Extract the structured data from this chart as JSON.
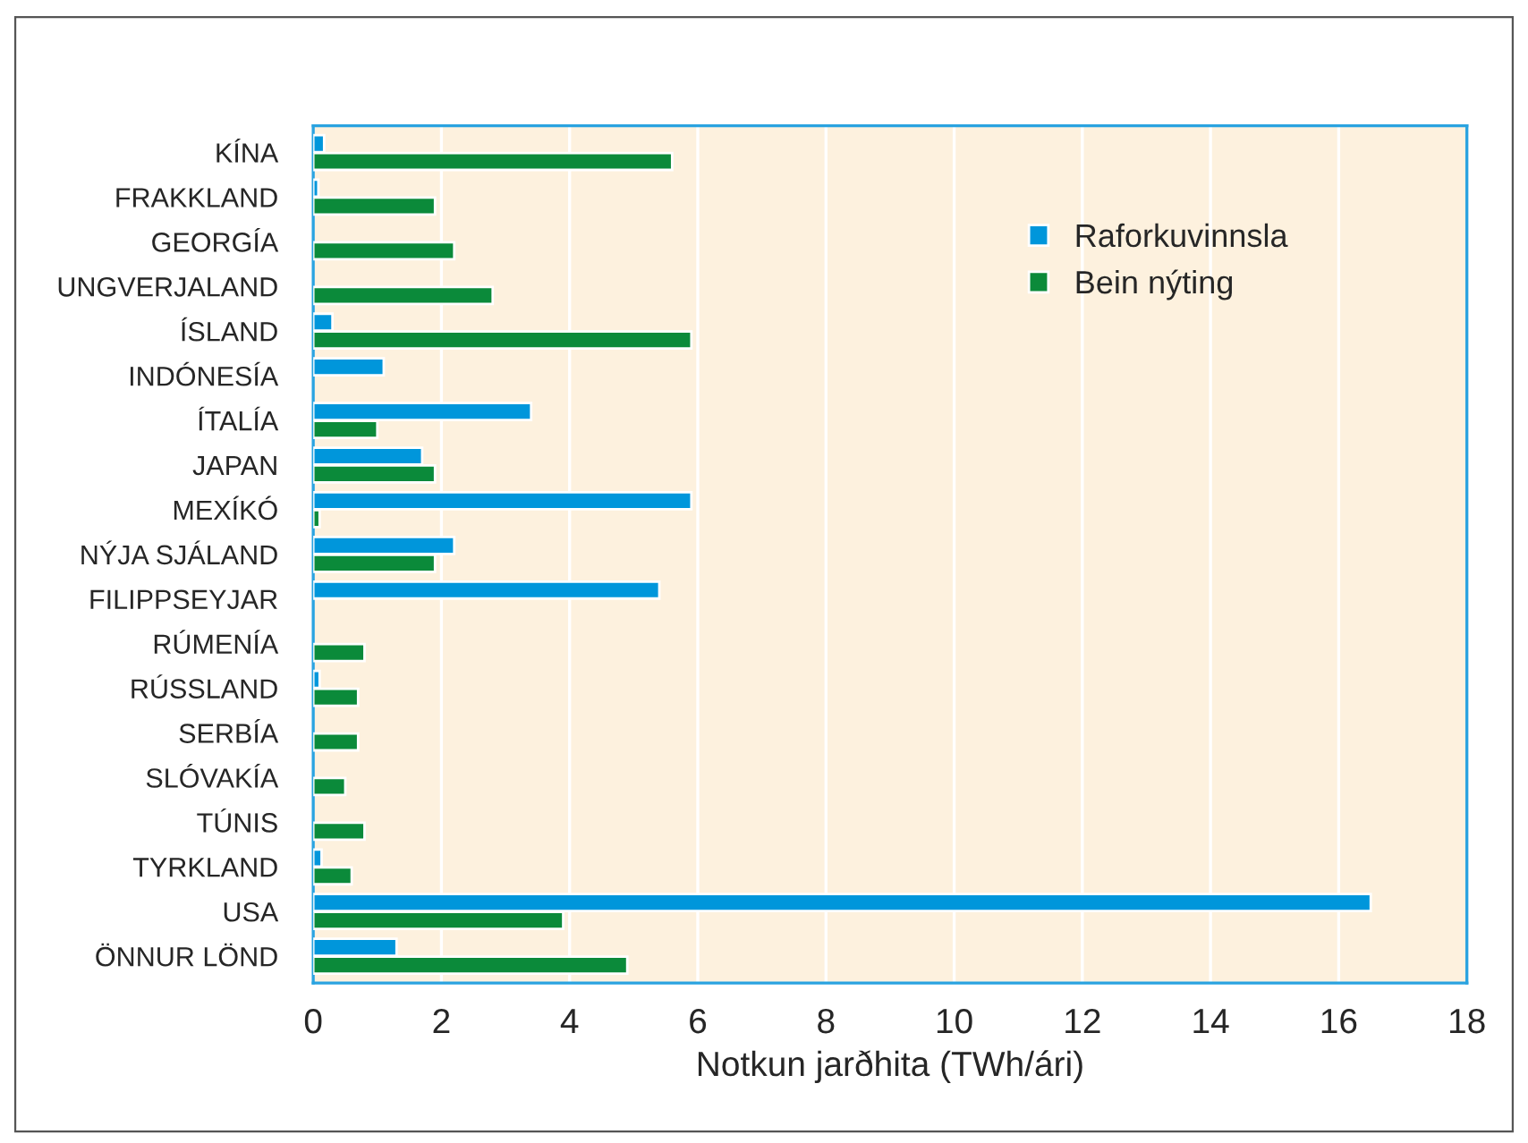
{
  "chart_data": {
    "type": "bar",
    "orientation": "horizontal",
    "xlabel": "Notkun jarðhita (TWh/ári)",
    "categories": [
      "KÍNA",
      "FRAKKLAND",
      "GEORGÍA",
      "UNGVERJALAND",
      "ÍSLAND",
      "INDÓNESÍA",
      "ÍTALÍA",
      "JAPAN",
      "MEXÍKÓ",
      "NÝJA SJÁLAND",
      "FILIPPSEYJAR",
      "RÚMENÍA",
      "RÚSSLAND",
      "SERBÍA",
      "SLÓVAKÍA",
      "TÚNIS",
      "TYRKLAND",
      "USA",
      "ÖNNUR LÖND"
    ],
    "series": [
      {
        "name": "Raforkuvinnsla",
        "color": "#0096db",
        "values": [
          0.17,
          0.08,
          null,
          null,
          0.3,
          1.1,
          3.4,
          1.7,
          5.9,
          2.2,
          5.4,
          null,
          0.1,
          null,
          null,
          null,
          0.13,
          16.5,
          1.3
        ]
      },
      {
        "name": "Bein nýting",
        "color": "#0b8a3a",
        "values": [
          5.6,
          1.9,
          2.2,
          2.8,
          5.9,
          null,
          1.0,
          1.9,
          0.1,
          1.9,
          null,
          0.8,
          0.7,
          0.7,
          0.5,
          0.8,
          0.6,
          3.9,
          4.9
        ]
      }
    ],
    "xlim": [
      0,
      18
    ],
    "xticks": [
      0,
      2,
      4,
      6,
      8,
      10,
      12,
      14,
      16,
      18
    ],
    "grid": "x",
    "legend": "top right"
  }
}
